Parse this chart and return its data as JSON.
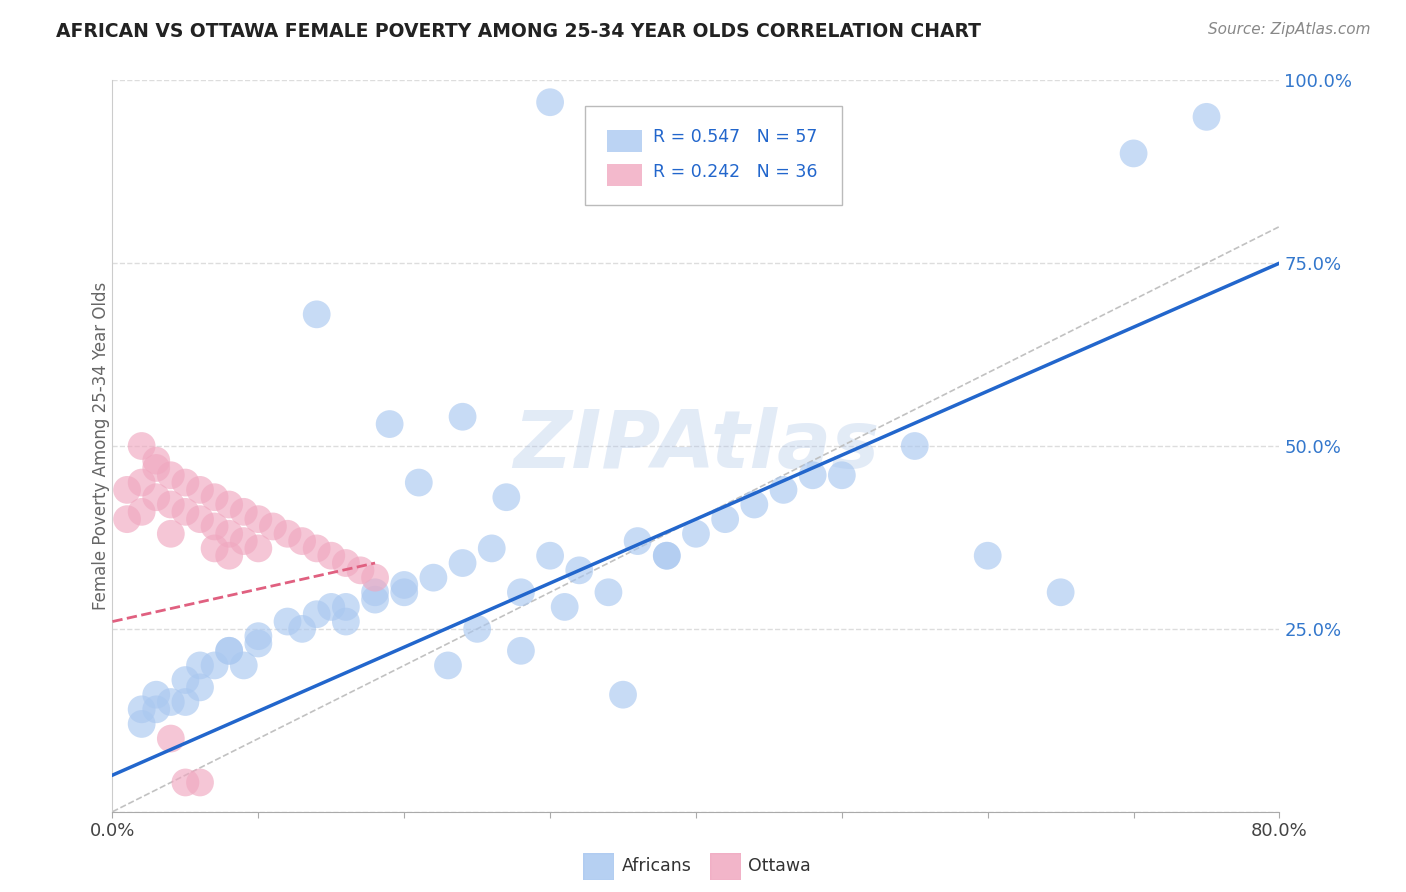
{
  "title": "AFRICAN VS OTTAWA FEMALE POVERTY AMONG 25-34 YEAR OLDS CORRELATION CHART",
  "source": "Source: ZipAtlas.com",
  "ylabel": "Female Poverty Among 25-34 Year Olds",
  "xlim": [
    0.0,
    0.8
  ],
  "ylim": [
    0.0,
    1.0
  ],
  "grid_color": "#cccccc",
  "watermark": "ZIPAtlas",
  "watermark_color": "#aec6e8",
  "african_color": "#aac8f0",
  "ottawa_color": "#f0a8c0",
  "african_trend_color": "#2266cc",
  "ottawa_trend_color": "#e06080",
  "ref_line_color": "#cccccc",
  "legend_r_african": "R = 0.547",
  "legend_n_african": "N = 57",
  "legend_r_ottawa": "R = 0.242",
  "legend_n_ottawa": "N = 36",
  "background_color": "#ffffff",
  "africans_x": [
    0.3,
    0.14,
    0.19,
    0.21,
    0.27,
    0.24,
    0.06,
    0.05,
    0.04,
    0.03,
    0.08,
    0.1,
    0.09,
    0.13,
    0.15,
    0.16,
    0.18,
    0.2,
    0.22,
    0.24,
    0.26,
    0.28,
    0.3,
    0.32,
    0.34,
    0.36,
    0.38,
    0.4,
    0.42,
    0.44,
    0.46,
    0.48,
    0.5,
    0.55,
    0.6,
    0.65,
    0.7,
    0.75,
    0.02,
    0.02,
    0.03,
    0.05,
    0.06,
    0.07,
    0.08,
    0.1,
    0.12,
    0.14,
    0.16,
    0.18,
    0.2,
    0.38,
    0.25,
    0.31,
    0.35,
    0.28,
    0.23
  ],
  "africans_y": [
    0.97,
    0.68,
    0.53,
    0.45,
    0.43,
    0.54,
    0.2,
    0.18,
    0.15,
    0.14,
    0.22,
    0.23,
    0.2,
    0.25,
    0.28,
    0.26,
    0.3,
    0.31,
    0.32,
    0.34,
    0.36,
    0.3,
    0.35,
    0.33,
    0.3,
    0.37,
    0.35,
    0.38,
    0.4,
    0.42,
    0.44,
    0.46,
    0.46,
    0.5,
    0.35,
    0.3,
    0.9,
    0.95,
    0.14,
    0.12,
    0.16,
    0.15,
    0.17,
    0.2,
    0.22,
    0.24,
    0.26,
    0.27,
    0.28,
    0.29,
    0.3,
    0.35,
    0.25,
    0.28,
    0.16,
    0.22,
    0.2
  ],
  "ottawa_x": [
    0.01,
    0.01,
    0.02,
    0.02,
    0.03,
    0.03,
    0.04,
    0.04,
    0.04,
    0.05,
    0.05,
    0.06,
    0.06,
    0.07,
    0.07,
    0.08,
    0.08,
    0.09,
    0.09,
    0.1,
    0.1,
    0.11,
    0.12,
    0.13,
    0.14,
    0.15,
    0.16,
    0.17,
    0.18,
    0.02,
    0.03,
    0.05,
    0.06,
    0.07,
    0.04,
    0.08
  ],
  "ottawa_y": [
    0.44,
    0.4,
    0.45,
    0.41,
    0.47,
    0.43,
    0.46,
    0.42,
    0.38,
    0.45,
    0.41,
    0.44,
    0.4,
    0.43,
    0.39,
    0.42,
    0.38,
    0.41,
    0.37,
    0.4,
    0.36,
    0.39,
    0.38,
    0.37,
    0.36,
    0.35,
    0.34,
    0.33,
    0.32,
    0.5,
    0.48,
    0.04,
    0.04,
    0.36,
    0.1,
    0.35
  ]
}
